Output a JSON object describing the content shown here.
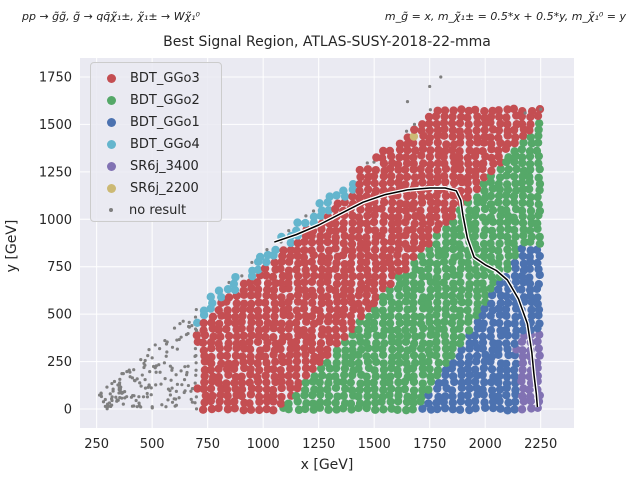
{
  "chart_data": {
    "type": "scatter",
    "title": "Best Signal Region, ATLAS-SUSY-2018-22-mma",
    "annotation_left": "pp → g̃g̃, g̃ → qq̄χ̃₁±, χ̃₁± → Wχ̃₁⁰",
    "annotation_right": "m_g̃ = x, m_χ̃₁± = 0.5*x + 0.5*y, m_χ̃₁⁰ = y",
    "xlabel": "x [GeV]",
    "ylabel": "y [GeV]",
    "xlim": [
      175,
      2400
    ],
    "ylim": [
      -100,
      1850
    ],
    "xticks": [
      250,
      500,
      750,
      1000,
      1250,
      1500,
      1750,
      2000,
      2250
    ],
    "yticks": [
      0,
      250,
      500,
      750,
      1000,
      1250,
      1500,
      1750
    ],
    "grid": true,
    "legend_position": "top-left",
    "series": [
      {
        "name": "BDT_GGo3",
        "color": "#c44e52"
      },
      {
        "name": "BDT_GGo2",
        "color": "#55a868"
      },
      {
        "name": "BDT_GGo1",
        "color": "#4c72b0"
      },
      {
        "name": "BDT_GGo4",
        "color": "#64b5cd"
      },
      {
        "name": "SR6j_3400",
        "color": "#8172b3"
      },
      {
        "name": "SR6j_2200",
        "color": "#ccb974"
      },
      {
        "name": "no result",
        "color": "#7f7f7f"
      }
    ],
    "regions": {
      "valid_domain": "y < x - 170",
      "boundary_GGo3_GGo2": "points with y < 1.3*x - 1400 are BDT_GGo2",
      "boundary_GGo2_GGo1": "points with x > 1700 + 0.55*y and y < 850 are BDT_GGo1",
      "GGo4_band": "points with x - 170 - y < 80 and x > 700 are BDT_GGo4",
      "no_result": "x < 700 and near-diagonal upper band",
      "SR6j_3400": "x > 2100 and y < 400",
      "SR6j_2200": "sparse points near the diagonal"
    },
    "exclusion_contour": {
      "x": [
        1050,
        1150,
        1250,
        1350,
        1450,
        1550,
        1650,
        1750,
        1820,
        1870,
        1890,
        1900,
        1920,
        1950,
        2000,
        2050,
        2100,
        2150,
        2190,
        2210,
        2220,
        2230,
        2235
      ],
      "y": [
        880,
        920,
        970,
        1030,
        1090,
        1130,
        1155,
        1165,
        1165,
        1150,
        1100,
        1020,
        900,
        800,
        760,
        730,
        680,
        580,
        450,
        300,
        180,
        80,
        10
      ]
    }
  }
}
